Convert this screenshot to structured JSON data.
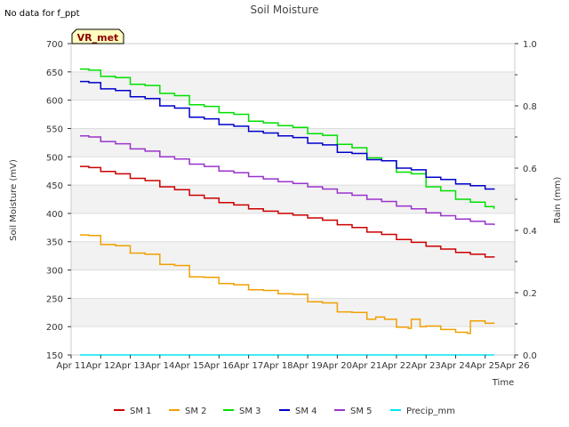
{
  "chart_data": {
    "type": "line",
    "title": "Soil Moisture",
    "note": "No data for f_ppt",
    "badge": "VR_met",
    "xlabel": "Time",
    "ylabel": "Soil Moisture (mV)",
    "y2label": "Rain (mm)",
    "ylim": [
      150,
      700
    ],
    "y2lim": [
      0.0,
      1.0
    ],
    "xlim": [
      11,
      26
    ],
    "x_ticks": [
      {
        "x": 11,
        "label": "Apr 11"
      },
      {
        "x": 12,
        "label": "Apr 12"
      },
      {
        "x": 13,
        "label": "Apr 13"
      },
      {
        "x": 14,
        "label": "Apr 14"
      },
      {
        "x": 15,
        "label": "Apr 15"
      },
      {
        "x": 16,
        "label": "Apr 16"
      },
      {
        "x": 17,
        "label": "Apr 17"
      },
      {
        "x": 18,
        "label": "Apr 18"
      },
      {
        "x": 19,
        "label": "Apr 19"
      },
      {
        "x": 20,
        "label": "Apr 20"
      },
      {
        "x": 21,
        "label": "Apr 21"
      },
      {
        "x": 22,
        "label": "Apr 22"
      },
      {
        "x": 23,
        "label": "Apr 23"
      },
      {
        "x": 24,
        "label": "Apr 24"
      },
      {
        "x": 25,
        "label": "Apr 25"
      },
      {
        "x": 26,
        "label": "Apr 26"
      }
    ],
    "y_ticks": [
      150,
      200,
      250,
      300,
      350,
      400,
      450,
      500,
      550,
      600,
      650,
      700
    ],
    "y2_ticks": [
      "0.0",
      "0.2",
      "0.4",
      "0.6",
      "0.8",
      "1.0"
    ],
    "grid": "horizontal bands",
    "series": [
      {
        "name": "SM 1",
        "color": "#cc0000",
        "axis": "left",
        "x": [
          11.3,
          11.6,
          12.0,
          12.5,
          13.0,
          13.5,
          14.0,
          14.5,
          15.0,
          15.5,
          16.0,
          16.5,
          17.0,
          17.5,
          18.0,
          18.5,
          19.0,
          19.5,
          20.0,
          20.5,
          21.0,
          21.5,
          22.0,
          22.5,
          23.0,
          23.5,
          24.0,
          24.5,
          25.0,
          25.3
        ],
        "y": [
          483,
          481,
          474,
          470,
          462,
          458,
          447,
          442,
          432,
          427,
          419,
          415,
          408,
          404,
          400,
          397,
          392,
          388,
          380,
          375,
          367,
          363,
          354,
          349,
          342,
          337,
          331,
          328,
          323,
          322
        ]
      },
      {
        "name": "SM 2",
        "color": "#f0a000",
        "axis": "left",
        "x": [
          11.3,
          11.6,
          12.0,
          12.5,
          13.0,
          13.5,
          14.0,
          14.5,
          15.0,
          15.5,
          16.0,
          16.5,
          17.0,
          17.5,
          18.0,
          18.5,
          19.0,
          19.5,
          20.0,
          20.5,
          21.0,
          21.3,
          21.6,
          22.0,
          22.4,
          22.5,
          22.8,
          23.0,
          23.5,
          24.0,
          24.4,
          24.5,
          25.0,
          25.3
        ],
        "y": [
          362,
          361,
          345,
          343,
          330,
          328,
          310,
          308,
          288,
          287,
          276,
          274,
          265,
          264,
          258,
          257,
          244,
          242,
          226,
          225,
          213,
          217,
          213,
          199,
          197,
          213,
          200,
          201,
          195,
          190,
          188,
          210,
          206,
          205
        ]
      },
      {
        "name": "SM 3",
        "color": "#00e000",
        "axis": "left",
        "x": [
          11.3,
          11.6,
          12.0,
          12.5,
          13.0,
          13.5,
          14.0,
          14.5,
          15.0,
          15.5,
          16.0,
          16.5,
          17.0,
          17.5,
          18.0,
          18.5,
          19.0,
          19.5,
          20.0,
          20.5,
          21.0,
          21.5,
          22.0,
          22.5,
          23.0,
          23.5,
          24.0,
          24.5,
          25.0,
          25.3
        ],
        "y": [
          655,
          653,
          642,
          640,
          628,
          626,
          612,
          608,
          592,
          589,
          578,
          575,
          563,
          560,
          555,
          552,
          541,
          538,
          522,
          516,
          498,
          493,
          473,
          470,
          447,
          440,
          425,
          420,
          412,
          408
        ]
      },
      {
        "name": "SM 4",
        "color": "#0000cc",
        "axis": "left",
        "x": [
          11.3,
          11.6,
          12.0,
          12.5,
          13.0,
          13.5,
          14.0,
          14.5,
          15.0,
          15.5,
          16.0,
          16.5,
          17.0,
          17.5,
          18.0,
          18.5,
          19.0,
          19.5,
          20.0,
          20.5,
          21.0,
          21.5,
          22.0,
          22.5,
          23.0,
          23.5,
          24.0,
          24.5,
          25.0,
          25.3
        ],
        "y": [
          633,
          631,
          620,
          617,
          606,
          603,
          590,
          586,
          570,
          567,
          557,
          554,
          545,
          542,
          537,
          534,
          524,
          521,
          508,
          506,
          495,
          493,
          480,
          477,
          464,
          460,
          452,
          449,
          443,
          442
        ]
      },
      {
        "name": "SM 5",
        "color": "#9933cc",
        "axis": "left",
        "x": [
          11.3,
          11.6,
          12.0,
          12.5,
          13.0,
          13.5,
          14.0,
          14.5,
          15.0,
          15.5,
          16.0,
          16.5,
          17.0,
          17.5,
          18.0,
          18.5,
          19.0,
          19.5,
          20.0,
          20.5,
          21.0,
          21.5,
          22.0,
          22.5,
          23.0,
          23.5,
          24.0,
          24.5,
          25.0,
          25.3
        ],
        "y": [
          537,
          535,
          527,
          523,
          514,
          510,
          500,
          496,
          487,
          483,
          475,
          472,
          465,
          461,
          456,
          453,
          447,
          443,
          436,
          432,
          425,
          421,
          413,
          408,
          401,
          396,
          390,
          386,
          381,
          379
        ]
      },
      {
        "name": "Precip_mm",
        "color": "#00e5ee",
        "axis": "right",
        "x": [
          11.3,
          25.3
        ],
        "y": [
          0.0,
          0.0
        ]
      }
    ]
  }
}
